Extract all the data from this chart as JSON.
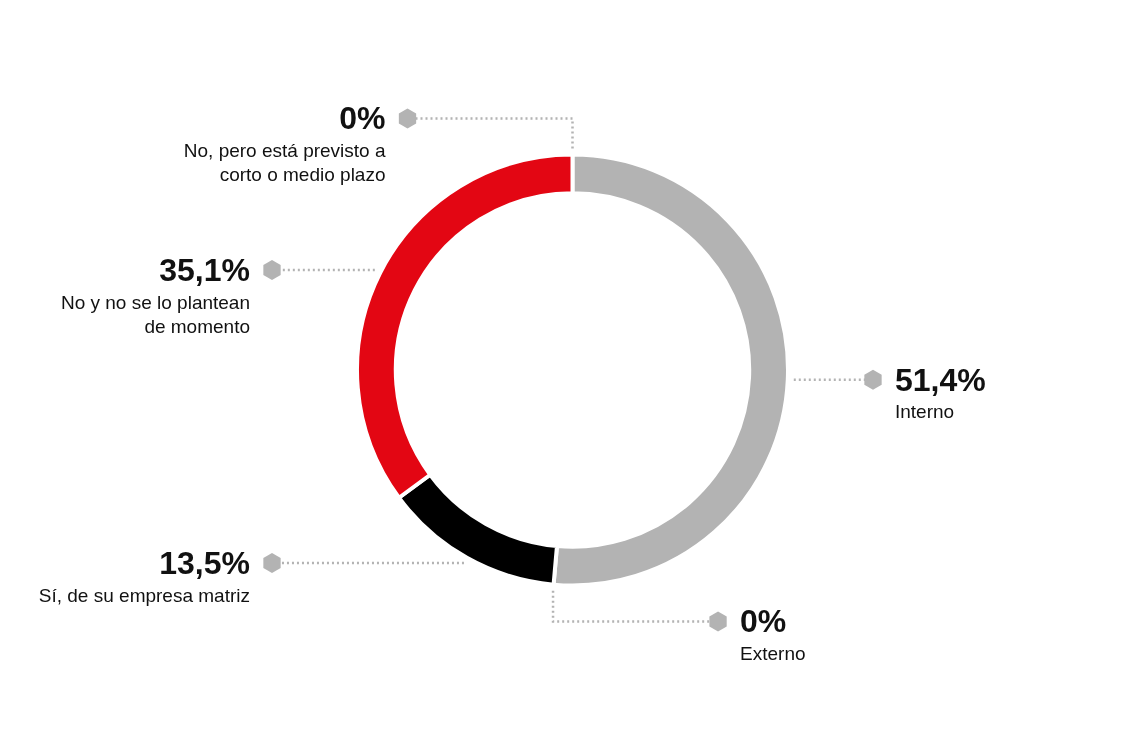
{
  "chart_data": {
    "type": "donut",
    "categories": [
      "Interno",
      "Externo",
      "Sí, de su empresa matriz",
      "No y no se lo plantean de momento",
      "No, pero está previsto a corto o medio plazo"
    ],
    "values": [
      51.4,
      0,
      13.5,
      35.1,
      0
    ],
    "colors": [
      "#b3b3b3",
      "#b3b3b3",
      "#000000",
      "#e30613",
      "#e30613"
    ],
    "value_labels": [
      "51,4%",
      "0%",
      "13,5%",
      "35,1%",
      "0%"
    ]
  }
}
